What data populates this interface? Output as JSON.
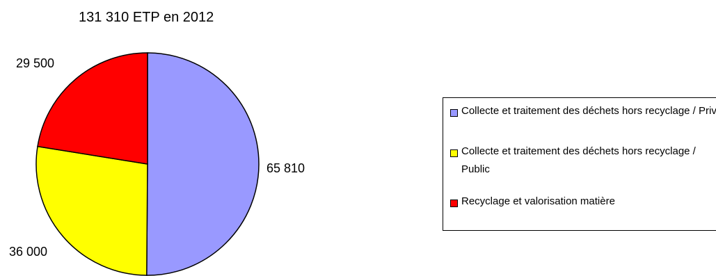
{
  "chart_data": {
    "type": "pie",
    "title": "131 310 ETP en 2012",
    "slices": [
      {
        "label": "Collecte et traitement des déchets hors recyclage / Privé",
        "value": 65810,
        "value_label": "65 810",
        "color": "#9999ff"
      },
      {
        "label": "Collecte et traitement des déchets hors recyclage / Public",
        "value": 36000,
        "value_label": "36 000",
        "color": "#ffff00"
      },
      {
        "label": "Recyclage et valorisation matière",
        "value": 29500,
        "value_label": "29 500",
        "color": "#ff0000"
      }
    ],
    "legend_position": "right"
  }
}
